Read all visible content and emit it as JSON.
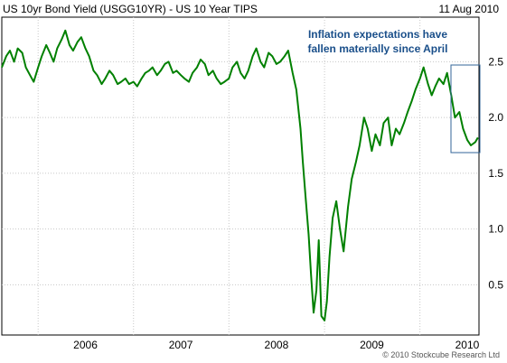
{
  "header": {
    "title": "US 10yr Bond Yield (USGG10YR) - US 10 Year TIPS",
    "date": "11 Aug 2010"
  },
  "footer": {
    "copyright": "© 2010  Stockcube Research Ltd"
  },
  "colors": {
    "line": "#008000",
    "grid": "#c8c8c8",
    "annotation_box": "#336699",
    "annotation_text": "#1a4f8a"
  },
  "chart_data": {
    "type": "line",
    "title": "US 10yr Bond Yield (USGG10YR) - US 10 Year TIPS",
    "xlabel": "",
    "ylabel": "",
    "x_tick_labels": [
      "2006",
      "2007",
      "2008",
      "2009",
      "2010"
    ],
    "y_tick_labels": [
      "0.5",
      "1.0",
      "1.5",
      "2.0",
      "2.5"
    ],
    "y_ticks": [
      0.5,
      1.0,
      1.5,
      2.0,
      2.5
    ],
    "ylim": [
      0.05,
      2.9
    ],
    "xlim": [
      "2005-08-15",
      "2010-08-15"
    ],
    "grid": true,
    "y_axis_side": "right",
    "annotation": {
      "text_lines": [
        "Inflation expectations have",
        "fallen materially since April"
      ]
    },
    "series": [
      {
        "x": [
          "2005-08-15",
          "2005-09-01",
          "2005-09-15",
          "2005-10-01",
          "2005-10-15",
          "2005-11-01",
          "2005-11-15",
          "2005-12-01",
          "2005-12-15",
          "2006-01-01",
          "2006-01-15",
          "2006-02-01",
          "2006-02-15",
          "2006-03-01",
          "2006-03-15",
          "2006-04-01",
          "2006-04-15",
          "2006-05-01",
          "2006-05-15",
          "2006-06-01",
          "2006-06-15",
          "2006-07-01",
          "2006-07-15",
          "2006-08-01",
          "2006-08-15",
          "2006-09-01",
          "2006-09-15",
          "2006-10-01",
          "2006-10-15",
          "2006-11-01",
          "2006-11-15",
          "2006-12-01",
          "2006-12-15",
          "2007-01-01",
          "2007-01-15",
          "2007-02-01",
          "2007-02-15",
          "2007-03-01",
          "2007-03-15",
          "2007-04-01",
          "2007-04-15",
          "2007-05-01",
          "2007-05-15",
          "2007-06-01",
          "2007-06-15",
          "2007-07-01",
          "2007-07-15",
          "2007-08-01",
          "2007-08-15",
          "2007-09-01",
          "2007-09-15",
          "2007-10-01",
          "2007-10-15",
          "2007-11-01",
          "2007-11-15",
          "2007-12-01",
          "2007-12-15",
          "2008-01-01",
          "2008-01-15",
          "2008-02-01",
          "2008-02-15",
          "2008-03-01",
          "2008-03-15",
          "2008-04-01",
          "2008-04-15",
          "2008-05-01",
          "2008-05-15",
          "2008-06-01",
          "2008-06-15",
          "2008-07-01",
          "2008-07-15",
          "2008-08-01",
          "2008-08-15",
          "2008-09-01",
          "2008-09-15",
          "2008-10-01",
          "2008-10-10",
          "2008-10-20",
          "2008-11-01",
          "2008-11-10",
          "2008-11-20",
          "2008-12-01",
          "2008-12-10",
          "2008-12-20",
          "2009-01-01",
          "2009-01-10",
          "2009-01-20",
          "2009-02-01",
          "2009-02-15",
          "2009-03-01",
          "2009-03-15",
          "2009-04-01",
          "2009-04-15",
          "2009-05-01",
          "2009-05-15",
          "2009-06-01",
          "2009-06-15",
          "2009-07-01",
          "2009-07-15",
          "2009-08-01",
          "2009-08-15",
          "2009-09-01",
          "2009-09-15",
          "2009-10-01",
          "2009-10-15",
          "2009-11-01",
          "2009-11-15",
          "2009-12-01",
          "2009-12-15",
          "2010-01-01",
          "2010-01-15",
          "2010-02-01",
          "2010-02-15",
          "2010-03-01",
          "2010-03-15",
          "2010-04-01",
          "2010-04-15",
          "2010-05-01",
          "2010-05-15",
          "2010-06-01",
          "2010-06-15",
          "2010-07-01",
          "2010-07-15",
          "2010-08-01",
          "2010-08-11"
        ],
        "y": [
          2.45,
          2.55,
          2.6,
          2.5,
          2.62,
          2.58,
          2.45,
          2.38,
          2.32,
          2.45,
          2.55,
          2.65,
          2.58,
          2.5,
          2.62,
          2.7,
          2.78,
          2.65,
          2.6,
          2.68,
          2.72,
          2.62,
          2.55,
          2.42,
          2.38,
          2.3,
          2.35,
          2.42,
          2.38,
          2.3,
          2.32,
          2.35,
          2.3,
          2.32,
          2.28,
          2.35,
          2.4,
          2.42,
          2.45,
          2.38,
          2.42,
          2.48,
          2.5,
          2.4,
          2.42,
          2.38,
          2.35,
          2.32,
          2.4,
          2.45,
          2.52,
          2.48,
          2.38,
          2.42,
          2.35,
          2.3,
          2.32,
          2.35,
          2.45,
          2.5,
          2.4,
          2.35,
          2.42,
          2.55,
          2.62,
          2.5,
          2.45,
          2.58,
          2.55,
          2.48,
          2.5,
          2.55,
          2.6,
          2.4,
          2.25,
          1.9,
          1.6,
          1.3,
          0.95,
          0.6,
          0.25,
          0.45,
          0.9,
          0.22,
          0.18,
          0.35,
          0.75,
          1.1,
          1.25,
          1.0,
          0.8,
          1.2,
          1.45,
          1.6,
          1.75,
          2.0,
          1.9,
          1.7,
          1.85,
          1.75,
          1.95,
          2.0,
          1.75,
          1.9,
          1.85,
          1.95,
          2.05,
          2.15,
          2.25,
          2.35,
          2.45,
          2.3,
          2.2,
          2.28,
          2.35,
          2.3,
          2.4,
          2.2,
          2.0,
          2.05,
          1.9,
          1.8,
          1.75,
          1.78,
          1.82
        ]
      }
    ]
  }
}
